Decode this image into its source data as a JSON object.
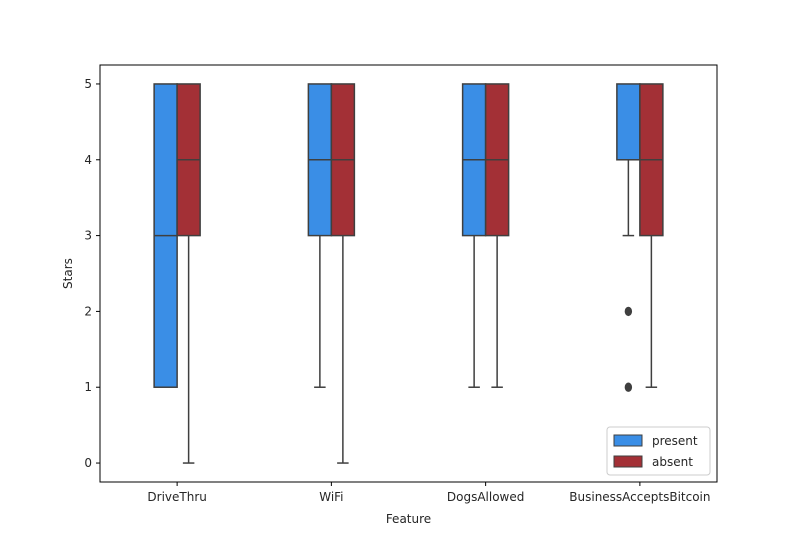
{
  "chart_data": {
    "type": "boxplot",
    "title": "",
    "xlabel": "Feature",
    "ylabel": "Stars",
    "categories": [
      "DriveThru",
      "WiFi",
      "DogsAllowed",
      "BusinessAcceptsBitcoin"
    ],
    "ylim": [
      -0.25,
      5.25
    ],
    "yticks": [
      0,
      1,
      2,
      3,
      4,
      5
    ],
    "grid": false,
    "legend": {
      "placement": "lower-right",
      "entries": [
        "present",
        "absent"
      ]
    },
    "series": [
      {
        "name": "present",
        "color": "#3a8ee6",
        "boxes": [
          {
            "whisker_low": 1,
            "q1": 1,
            "median": 3,
            "q3": 5,
            "whisker_high": 5,
            "outliers": []
          },
          {
            "whisker_low": 1,
            "q1": 3,
            "median": 4,
            "q3": 5,
            "whisker_high": 5,
            "outliers": []
          },
          {
            "whisker_low": 1,
            "q1": 3,
            "median": 4,
            "q3": 5,
            "whisker_high": 5,
            "outliers": []
          },
          {
            "whisker_low": 3,
            "q1": 4,
            "median": 4,
            "q3": 5,
            "whisker_high": 5,
            "outliers": [
              2,
              1
            ]
          }
        ]
      },
      {
        "name": "absent",
        "color": "#a33036",
        "boxes": [
          {
            "whisker_low": 0,
            "q1": 3,
            "median": 4,
            "q3": 5,
            "whisker_high": 5,
            "outliers": []
          },
          {
            "whisker_low": 0,
            "q1": 3,
            "median": 4,
            "q3": 5,
            "whisker_high": 5,
            "outliers": []
          },
          {
            "whisker_low": 1,
            "q1": 3,
            "median": 4,
            "q3": 5,
            "whisker_high": 5,
            "outliers": []
          },
          {
            "whisker_low": 1,
            "q1": 3,
            "median": 4,
            "q3": 5,
            "whisker_high": 5,
            "outliers": []
          }
        ]
      }
    ]
  }
}
